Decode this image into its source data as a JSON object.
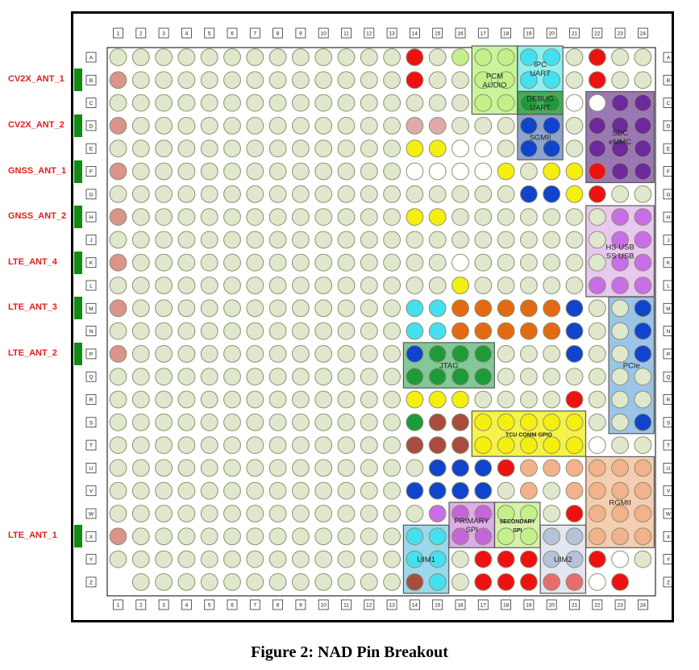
{
  "caption": "Figure 2: NAD Pin Breakout",
  "columns": [
    "1",
    "2",
    "3",
    "4",
    "5",
    "6",
    "7",
    "8",
    "9",
    "10",
    "11",
    "12",
    "13",
    "14",
    "15",
    "16",
    "17",
    "18",
    "19",
    "20",
    "21",
    "22",
    "23",
    "24"
  ],
  "rows": [
    "A",
    "B",
    "C",
    "D",
    "E",
    "F",
    "G",
    "H",
    "J",
    "K",
    "L",
    "M",
    "N",
    "P",
    "Q",
    "R",
    "S",
    "T",
    "U",
    "V",
    "W",
    "X",
    "Y",
    "Z"
  ],
  "colors": {
    "default": "#dfe8cc",
    "antenna": "#d9948c",
    "red": "#ee1111",
    "lightgreen": "#c3f08a",
    "cyan": "#44e0f0",
    "darkgreen": "#1e9a3a",
    "white": "#ffffff",
    "pink": "#e0aaaa",
    "yellow": "#f5ef10",
    "blue": "#1044cc",
    "purple": "#6c2a9c",
    "violet": "#c86ee6",
    "orange": "#e26a12",
    "brown": "#a84c40",
    "peach": "#f2b28c",
    "mauve": "#c466d8",
    "grayblue": "#b6c2da",
    "salmon": "#e86c6c",
    "outline": "#8e9070"
  },
  "antennas": [
    {
      "label": "CV2X_ANT_1",
      "row": "B"
    },
    {
      "label": "CV2X_ANT_2",
      "row": "D"
    },
    {
      "label": "GNSS_ANT_1",
      "row": "F"
    },
    {
      "label": "GNSS_ANT_2",
      "row": "H"
    },
    {
      "label": "LTE_ANT_4",
      "row": "K"
    },
    {
      "label": "LTE_ANT_3",
      "row": "M"
    },
    {
      "label": "LTE_ANT_2",
      "row": "P"
    },
    {
      "label": "LTE_ANT_1",
      "row": "X"
    }
  ],
  "groups": [
    {
      "id": "pcm-audio",
      "label": [
        "PCM",
        "AUDIO"
      ],
      "cols": [
        17,
        18
      ],
      "rows": [
        "A",
        "C"
      ],
      "fill": "#c8f59c"
    },
    {
      "id": "ipc-uart",
      "label": [
        "IPC",
        "UART"
      ],
      "cols": [
        19,
        20
      ],
      "rows": [
        "A",
        "B"
      ],
      "fill": "#8ff0f0"
    },
    {
      "id": "debug-uart",
      "label": [
        "DEBUG",
        "UART"
      ],
      "cols": [
        19,
        20
      ],
      "rows": [
        "C",
        "C"
      ],
      "fill": "#3faf55"
    },
    {
      "id": "sgmii",
      "label": [
        "SGMII"
      ],
      "cols": [
        19,
        20
      ],
      "rows": [
        "D",
        "E"
      ],
      "fill": "#8ea4cc"
    },
    {
      "id": "sdc-emmc",
      "label": [
        "SDC",
        "eMMC"
      ],
      "cols": [
        22,
        24
      ],
      "rows": [
        "C",
        "F"
      ],
      "fill": "#9a78b4"
    },
    {
      "id": "hs-ss-usb",
      "label": [
        "HS USB",
        "SS USB"
      ],
      "cols": [
        22,
        24
      ],
      "rows": [
        "H",
        "L"
      ],
      "fill": "#e8c8ee"
    },
    {
      "id": "pcie",
      "label": [
        "PCIe"
      ],
      "cols": [
        23,
        24
      ],
      "rows": [
        "M",
        "S"
      ],
      "fill": "#9ac4e8"
    },
    {
      "id": "jtag",
      "label": [
        "JTAG"
      ],
      "cols": [
        14,
        17
      ],
      "rows": [
        "P",
        "Q"
      ],
      "fill": "#82c898"
    },
    {
      "id": "tcu-gpio",
      "label": [
        "TCU COMM GPIO"
      ],
      "cols": [
        17,
        21
      ],
      "rows": [
        "S",
        "T"
      ],
      "fill": "#f5f24a"
    },
    {
      "id": "rgmii",
      "label": [
        "RGMII"
      ],
      "cols": [
        22,
        24
      ],
      "rows": [
        "U",
        "X"
      ],
      "fill": "#f5cdb0"
    },
    {
      "id": "primary-spi",
      "label": [
        "PRIMARY",
        "SPI"
      ],
      "cols": [
        16,
        17
      ],
      "rows": [
        "W",
        "X"
      ],
      "fill": "#dcaee8"
    },
    {
      "id": "secondary-spi",
      "label": [
        "SECONDARY",
        "SPI"
      ],
      "cols": [
        18,
        19
      ],
      "rows": [
        "W",
        "X"
      ],
      "fill": "#d6f2a8"
    },
    {
      "id": "uim1",
      "label": [
        "UIM1"
      ],
      "cols": [
        14,
        15
      ],
      "rows": [
        "X",
        "Z"
      ],
      "fill": "#9ad8ec"
    },
    {
      "id": "uim2",
      "label": [
        "UIM2"
      ],
      "cols": [
        20,
        21
      ],
      "rows": [
        "X",
        "Z"
      ],
      "fill": "#e2e6f2"
    }
  ],
  "special_pins": [
    {
      "row": "A",
      "pins": [
        [
          14,
          "red"
        ],
        [
          16,
          "lightgreen"
        ],
        [
          17,
          "lightgreen"
        ],
        [
          18,
          "lightgreen"
        ],
        [
          19,
          "cyan"
        ],
        [
          20,
          "cyan"
        ],
        [
          22,
          "red"
        ]
      ]
    },
    {
      "row": "B",
      "pins": [
        [
          1,
          "antenna"
        ],
        [
          14,
          "red"
        ],
        [
          17,
          "lightgreen"
        ],
        [
          18,
          "lightgreen"
        ],
        [
          19,
          "cyan"
        ],
        [
          20,
          "cyan"
        ],
        [
          22,
          "red"
        ]
      ]
    },
    {
      "row": "C",
      "pins": [
        [
          17,
          "lightgreen"
        ],
        [
          18,
          "lightgreen"
        ],
        [
          19,
          "darkgreen"
        ],
        [
          20,
          "darkgreen"
        ],
        [
          21,
          "white"
        ],
        [
          22,
          "white"
        ],
        [
          23,
          "purple"
        ],
        [
          24,
          "purple"
        ]
      ]
    },
    {
      "row": "D",
      "pins": [
        [
          1,
          "antenna"
        ],
        [
          14,
          "pink"
        ],
        [
          15,
          "pink"
        ],
        [
          19,
          "blue"
        ],
        [
          20,
          "blue"
        ],
        [
          22,
          "purple"
        ],
        [
          23,
          "purple"
        ],
        [
          24,
          "purple"
        ]
      ]
    },
    {
      "row": "E",
      "pins": [
        [
          14,
          "yellow"
        ],
        [
          15,
          "yellow"
        ],
        [
          16,
          "white"
        ],
        [
          17,
          "white"
        ],
        [
          19,
          "blue"
        ],
        [
          20,
          "blue"
        ],
        [
          22,
          "purple"
        ],
        [
          23,
          "purple"
        ],
        [
          24,
          "purple"
        ]
      ]
    },
    {
      "row": "F",
      "pins": [
        [
          1,
          "antenna"
        ],
        [
          14,
          "white"
        ],
        [
          15,
          "white"
        ],
        [
          16,
          "white"
        ],
        [
          17,
          "white"
        ],
        [
          18,
          "yellow"
        ],
        [
          20,
          "yellow"
        ],
        [
          21,
          "yellow"
        ],
        [
          22,
          "red"
        ],
        [
          23,
          "purple"
        ],
        [
          24,
          "purple"
        ]
      ]
    },
    {
      "row": "G",
      "pins": [
        [
          19,
          "blue"
        ],
        [
          20,
          "blue"
        ],
        [
          21,
          "yellow"
        ],
        [
          22,
          "red"
        ]
      ]
    },
    {
      "row": "H",
      "pins": [
        [
          1,
          "antenna"
        ],
        [
          14,
          "yellow"
        ],
        [
          15,
          "yellow"
        ],
        [
          23,
          "violet"
        ],
        [
          24,
          "violet"
        ]
      ]
    },
    {
      "row": "J",
      "pins": [
        [
          23,
          "violet"
        ],
        [
          24,
          "violet"
        ]
      ]
    },
    {
      "row": "K",
      "pins": [
        [
          1,
          "antenna"
        ],
        [
          16,
          "white"
        ],
        [
          23,
          "violet"
        ],
        [
          24,
          "violet"
        ]
      ]
    },
    {
      "row": "L",
      "pins": [
        [
          16,
          "yellow"
        ],
        [
          22,
          "violet"
        ],
        [
          23,
          "violet"
        ],
        [
          24,
          "violet"
        ]
      ]
    },
    {
      "row": "M",
      "pins": [
        [
          1,
          "antenna"
        ],
        [
          14,
          "cyan"
        ],
        [
          15,
          "cyan"
        ],
        [
          16,
          "orange"
        ],
        [
          17,
          "orange"
        ],
        [
          18,
          "orange"
        ],
        [
          19,
          "orange"
        ],
        [
          20,
          "orange"
        ],
        [
          21,
          "blue"
        ],
        [
          24,
          "blue"
        ]
      ]
    },
    {
      "row": "N",
      "pins": [
        [
          14,
          "cyan"
        ],
        [
          15,
          "cyan"
        ],
        [
          16,
          "orange"
        ],
        [
          17,
          "orange"
        ],
        [
          18,
          "orange"
        ],
        [
          19,
          "orange"
        ],
        [
          20,
          "orange"
        ],
        [
          21,
          "blue"
        ],
        [
          24,
          "blue"
        ]
      ]
    },
    {
      "row": "P",
      "pins": [
        [
          1,
          "antenna"
        ],
        [
          14,
          "blue"
        ],
        [
          15,
          "darkgreen"
        ],
        [
          16,
          "darkgreen"
        ],
        [
          17,
          "darkgreen"
        ],
        [
          21,
          "blue"
        ],
        [
          24,
          "blue"
        ]
      ]
    },
    {
      "row": "Q",
      "pins": [
        [
          14,
          "darkgreen"
        ],
        [
          15,
          "darkgreen"
        ],
        [
          16,
          "darkgreen"
        ],
        [
          17,
          "darkgreen"
        ]
      ]
    },
    {
      "row": "R",
      "pins": [
        [
          14,
          "yellow"
        ],
        [
          15,
          "yellow"
        ],
        [
          16,
          "yellow"
        ],
        [
          21,
          "red"
        ]
      ]
    },
    {
      "row": "S",
      "pins": [
        [
          14,
          "darkgreen"
        ],
        [
          15,
          "brown"
        ],
        [
          16,
          "brown"
        ],
        [
          17,
          "yellow"
        ],
        [
          18,
          "yellow"
        ],
        [
          19,
          "yellow"
        ],
        [
          20,
          "yellow"
        ],
        [
          21,
          "yellow"
        ],
        [
          24,
          "blue"
        ]
      ]
    },
    {
      "row": "T",
      "pins": [
        [
          14,
          "brown"
        ],
        [
          15,
          "brown"
        ],
        [
          16,
          "brown"
        ],
        [
          17,
          "yellow"
        ],
        [
          18,
          "yellow"
        ],
        [
          19,
          "yellow"
        ],
        [
          20,
          "yellow"
        ],
        [
          21,
          "yellow"
        ],
        [
          22,
          "white"
        ]
      ]
    },
    {
      "row": "U",
      "pins": [
        [
          15,
          "blue"
        ],
        [
          16,
          "blue"
        ],
        [
          17,
          "blue"
        ],
        [
          18,
          "red"
        ],
        [
          19,
          "peach"
        ],
        [
          20,
          "peach"
        ],
        [
          21,
          "peach"
        ],
        [
          22,
          "peach"
        ],
        [
          23,
          "peach"
        ],
        [
          24,
          "peach"
        ]
      ]
    },
    {
      "row": "V",
      "pins": [
        [
          14,
          "blue"
        ],
        [
          15,
          "blue"
        ],
        [
          16,
          "blue"
        ],
        [
          17,
          "blue"
        ],
        [
          19,
          "peach"
        ],
        [
          21,
          "peach"
        ],
        [
          22,
          "peach"
        ],
        [
          23,
          "peach"
        ],
        [
          24,
          "peach"
        ]
      ]
    },
    {
      "row": "W",
      "pins": [
        [
          15,
          "violet"
        ],
        [
          16,
          "mauve"
        ],
        [
          17,
          "mauve"
        ],
        [
          18,
          "lightgreen"
        ],
        [
          19,
          "lightgreen"
        ],
        [
          21,
          "red"
        ],
        [
          22,
          "peach"
        ],
        [
          23,
          "peach"
        ],
        [
          24,
          "peach"
        ]
      ]
    },
    {
      "row": "X",
      "pins": [
        [
          1,
          "antenna"
        ],
        [
          14,
          "cyan"
        ],
        [
          15,
          "cyan"
        ],
        [
          16,
          "mauve"
        ],
        [
          17,
          "mauve"
        ],
        [
          18,
          "lightgreen"
        ],
        [
          19,
          "lightgreen"
        ],
        [
          20,
          "grayblue"
        ],
        [
          21,
          "grayblue"
        ],
        [
          22,
          "peach"
        ],
        [
          23,
          "peach"
        ],
        [
          24,
          "peach"
        ]
      ]
    },
    {
      "row": "Y",
      "pins": [
        [
          14,
          "cyan"
        ],
        [
          15,
          "cyan"
        ],
        [
          17,
          "red"
        ],
        [
          18,
          "red"
        ],
        [
          19,
          "red"
        ],
        [
          20,
          "grayblue"
        ],
        [
          21,
          "grayblue"
        ],
        [
          22,
          "red"
        ],
        [
          23,
          "white"
        ]
      ]
    },
    {
      "row": "Z",
      "pins": [
        [
          1,
          "none"
        ],
        [
          14,
          "brown"
        ],
        [
          15,
          "cyan"
        ],
        [
          17,
          "red"
        ],
        [
          18,
          "red"
        ],
        [
          19,
          "red"
        ],
        [
          20,
          "salmon"
        ],
        [
          21,
          "salmon"
        ],
        [
          22,
          "white"
        ],
        [
          23,
          "red"
        ],
        [
          24,
          "none"
        ]
      ]
    }
  ]
}
